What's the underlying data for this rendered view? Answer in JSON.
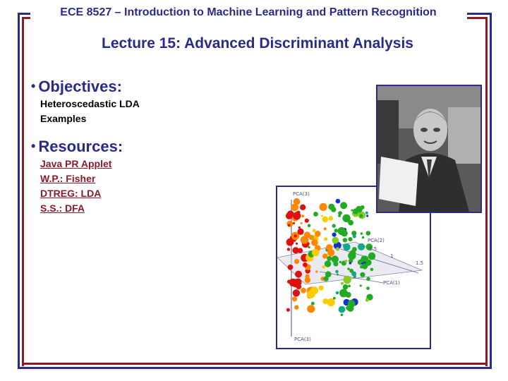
{
  "header": {
    "text": "ECE 8527 – Introduction to Machine Learning and Pattern Recognition"
  },
  "title": {
    "text": "Lecture 15: Advanced Discriminant Analysis"
  },
  "objectives": {
    "heading": "Objectives:",
    "items": [
      "Heteroscedastic LDA",
      "Examples"
    ]
  },
  "resources": {
    "heading": "Resources:",
    "links": [
      "Java PR Applet",
      "W.P.: Fisher",
      "DTREG: LDA",
      "S.S.: DFA"
    ]
  },
  "plot_labels": {
    "pca3_top": "PCA(3)",
    "pca2": "PCA(2)",
    "tick_05": "0.5",
    "tick_1": "1",
    "tick_15": "1.5",
    "pca1": "PCA(1)",
    "pca3_bottom": "PCA(3)"
  },
  "colors": {
    "accent": "#2a2a8a",
    "frame_red": "#8b1a2a",
    "link": "#8b1a2a"
  }
}
